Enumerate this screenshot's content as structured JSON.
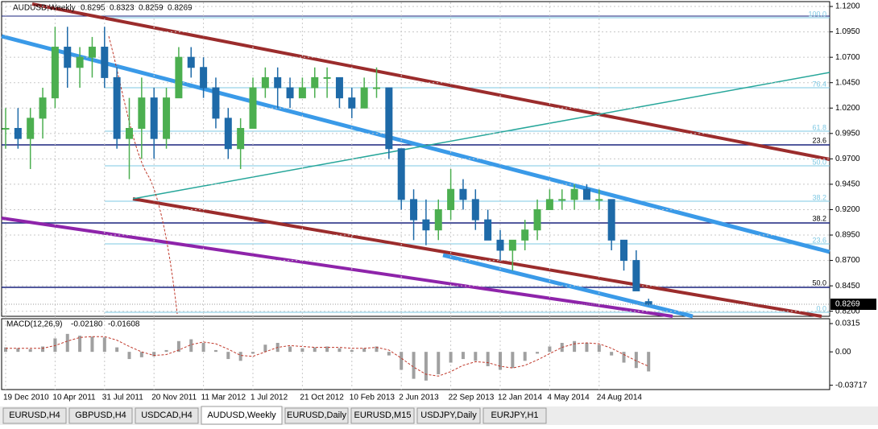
{
  "chart_data": [
    {
      "type": "candlestick",
      "title": "AUDUSD,Weekly",
      "categories": [
        "19 Dec 2010",
        null,
        null,
        null,
        "10 Apr 2011",
        null,
        null,
        null,
        "31 Jul 2011",
        null,
        null,
        null,
        "20 Nov 2011",
        null,
        null,
        null,
        "11 Mar 2012",
        null,
        null,
        null,
        "1 Jul 2012",
        null,
        null,
        null,
        "21 Oct 2012",
        null,
        null,
        null,
        "10 Feb 2013",
        null,
        null,
        null,
        "2 Jun 2013",
        null,
        null,
        null,
        "22 Sep 2013",
        null,
        null,
        null,
        "12 Jan 2014",
        null,
        null,
        null,
        "4 May 2014",
        null,
        null,
        null,
        "24 Aug 2014",
        null,
        null,
        null,
        null
      ],
      "open": [
        1.0,
        1.0,
        0.99,
        1.01,
        1.03,
        1.08,
        1.06,
        1.07,
        1.08,
        1.05,
        0.99,
        1.0,
        1.03,
        0.99,
        1.03,
        1.07,
        1.06,
        1.04,
        1.01,
        0.98,
        1.0,
        1.04,
        1.05,
        1.04,
        1.03,
        1.04,
        1.05,
        1.05,
        1.03,
        1.02,
        1.04,
        1.04,
        0.98,
        0.93,
        0.91,
        0.9,
        0.92,
        0.94,
        0.93,
        0.91,
        0.89,
        0.88,
        0.89,
        0.9,
        0.92,
        0.93,
        0.93,
        0.94,
        0.93,
        0.93,
        0.89,
        0.87,
        0.8295
      ],
      "high": [
        1.02,
        1.02,
        1.02,
        1.04,
        1.1,
        1.1,
        1.08,
        1.09,
        1.1,
        1.06,
        1.03,
        1.05,
        1.04,
        1.04,
        1.08,
        1.08,
        1.07,
        1.05,
        1.02,
        1.01,
        1.05,
        1.06,
        1.06,
        1.05,
        1.05,
        1.06,
        1.06,
        1.05,
        1.04,
        1.05,
        1.06,
        1.04,
        0.98,
        0.94,
        0.93,
        0.93,
        0.96,
        0.95,
        0.94,
        0.92,
        0.9,
        0.89,
        0.91,
        0.93,
        0.94,
        0.94,
        0.945,
        0.945,
        0.94,
        0.93,
        0.89,
        0.88,
        0.8323
      ],
      "low": [
        0.98,
        0.98,
        0.96,
        0.99,
        1.02,
        1.04,
        1.04,
        1.05,
        1.04,
        0.98,
        0.95,
        0.97,
        0.97,
        0.98,
        1.03,
        1.05,
        1.03,
        1.0,
        0.97,
        0.96,
        1.0,
        1.03,
        1.02,
        1.02,
        1.03,
        1.03,
        1.03,
        1.02,
        1.01,
        1.02,
        1.03,
        0.97,
        0.92,
        0.89,
        0.885,
        0.89,
        0.91,
        0.92,
        0.9,
        0.89,
        0.87,
        0.86,
        0.88,
        0.89,
        0.92,
        0.92,
        0.92,
        0.93,
        0.92,
        0.88,
        0.86,
        0.84,
        0.8259
      ],
      "close": [
        1.0,
        0.99,
        1.01,
        1.03,
        1.08,
        1.06,
        1.07,
        1.08,
        1.05,
        0.99,
        1.0,
        1.03,
        0.99,
        1.03,
        1.07,
        1.06,
        1.04,
        1.01,
        0.98,
        1.0,
        1.04,
        1.05,
        1.04,
        1.03,
        1.04,
        1.05,
        1.05,
        1.03,
        1.02,
        1.04,
        1.04,
        0.98,
        0.93,
        0.91,
        0.9,
        0.92,
        0.94,
        0.93,
        0.91,
        0.89,
        0.88,
        0.89,
        0.9,
        0.92,
        0.93,
        0.93,
        0.94,
        0.93,
        0.93,
        0.89,
        0.87,
        0.84,
        0.8269
      ],
      "up_color": "#4caf50",
      "down_color": "#1e6aa8",
      "ylim": [
        0.815,
        1.124
      ],
      "yticks": [
        {
          "value": 1.12,
          "label": "1.1200"
        },
        {
          "value": 1.095,
          "label": "1.0950"
        },
        {
          "value": 1.07,
          "label": "1.0700"
        },
        {
          "value": 1.045,
          "label": "1.0450"
        },
        {
          "value": 1.02,
          "label": "1.0200"
        },
        {
          "value": 0.995,
          "label": "0.9950"
        },
        {
          "value": 0.97,
          "label": "0.9700"
        },
        {
          "value": 0.945,
          "label": "0.9450"
        },
        {
          "value": 0.92,
          "label": "0.9200"
        },
        {
          "value": 0.895,
          "label": "0.8950"
        },
        {
          "value": 0.87,
          "label": "0.8700"
        },
        {
          "value": 0.845,
          "label": "0.8450"
        },
        {
          "value": 0.82,
          "label": "0.8200"
        }
      ],
      "grid": true
    },
    {
      "type": "macd",
      "title": "MACD(12,26,9)",
      "legend_values": [
        "-0.02180",
        "-0.01608"
      ],
      "histogram": [
        0.005,
        0.004,
        0.003,
        0.006,
        0.015,
        0.02,
        0.018,
        0.017,
        0.016,
        0.005,
        -0.008,
        -0.006,
        -0.005,
        0.002,
        0.012,
        0.014,
        0.01,
        0.002,
        -0.008,
        -0.01,
        -0.002,
        0.008,
        0.01,
        0.006,
        0.004,
        0.005,
        0.006,
        0.004,
        0.002,
        0.004,
        0.006,
        -0.004,
        -0.02,
        -0.03,
        -0.032,
        -0.025,
        -0.012,
        -0.008,
        -0.01,
        -0.016,
        -0.02,
        -0.018,
        -0.01,
        -0.002,
        0.006,
        0.01,
        0.012,
        0.01,
        0.008,
        -0.004,
        -0.012,
        -0.018,
        -0.0218
      ],
      "signal": [
        0.004,
        0.004,
        0.004,
        0.004,
        0.007,
        0.012,
        0.016,
        0.017,
        0.017,
        0.013,
        0.006,
        0.0,
        -0.004,
        -0.003,
        0.002,
        0.008,
        0.011,
        0.009,
        0.003,
        -0.004,
        -0.005,
        0.0,
        0.005,
        0.007,
        0.006,
        0.005,
        0.005,
        0.005,
        0.004,
        0.004,
        0.005,
        0.002,
        -0.007,
        -0.017,
        -0.025,
        -0.027,
        -0.022,
        -0.015,
        -0.011,
        -0.012,
        -0.016,
        -0.018,
        -0.015,
        -0.009,
        -0.002,
        0.005,
        0.009,
        0.01,
        0.009,
        0.004,
        -0.003,
        -0.01,
        -0.01608
      ],
      "histogram_color": "#a0a0a0",
      "signal_color": "#c0392b",
      "ylim": [
        -0.042,
        0.036
      ],
      "yticks": [
        0.0315,
        {
          "value": 0,
          "label": "0.00"
        },
        -0.03717
      ]
    }
  ],
  "fibonacci": {
    "light": [
      "100.0",
      "76.4",
      "61.8",
      "50.0",
      "38.2",
      "23.6",
      "0.0"
    ],
    "dark": [
      "23.6",
      "38.2",
      "50.0"
    ]
  },
  "tabs": [
    "EURUSD,H4",
    "GBPUSD,H4",
    "USDCAD,H4",
    "AUDUSD,Weekly",
    "EURUSD,Daily",
    "EURUSD,M15",
    "USDJPY,Daily",
    "EURJPY,H1"
  ],
  "active_tab": 3
}
